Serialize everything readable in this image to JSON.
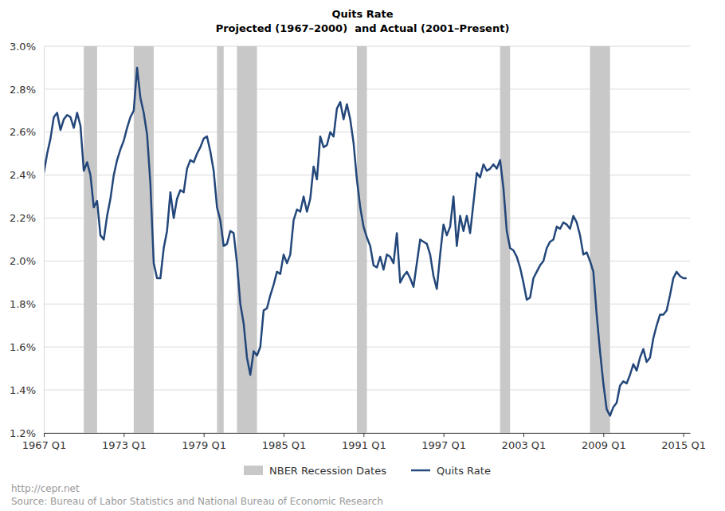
{
  "chart_data": {
    "type": "line",
    "title": "Quits Rate",
    "subtitle": "Projected (1967–2000)  and Actual (2001–Present)",
    "credit": "http://cepr.net",
    "source": "Source: Bureau of Labor Statistics and National Bureau of Economic Research",
    "x": [
      1967,
      1967.25,
      1967.5,
      1967.75,
      1968,
      1968.25,
      1968.5,
      1968.75,
      1969,
      1969.25,
      1969.5,
      1969.75,
      1970,
      1970.25,
      1970.5,
      1970.75,
      1971,
      1971.25,
      1971.5,
      1971.75,
      1972,
      1972.25,
      1972.5,
      1972.75,
      1973,
      1973.25,
      1973.5,
      1973.75,
      1974,
      1974.25,
      1974.5,
      1974.75,
      1975,
      1975.25,
      1975.5,
      1975.75,
      1976,
      1976.25,
      1976.5,
      1976.75,
      1977,
      1977.25,
      1977.5,
      1977.75,
      1978,
      1978.25,
      1978.5,
      1978.75,
      1979,
      1979.25,
      1979.5,
      1979.75,
      1980,
      1980.25,
      1980.5,
      1980.75,
      1981,
      1981.25,
      1981.5,
      1981.75,
      1982,
      1982.25,
      1982.5,
      1982.75,
      1983,
      1983.25,
      1983.5,
      1983.75,
      1984,
      1984.25,
      1984.5,
      1984.75,
      1985,
      1985.25,
      1985.5,
      1985.75,
      1986,
      1986.25,
      1986.5,
      1986.75,
      1987,
      1987.25,
      1987.5,
      1987.75,
      1988,
      1988.25,
      1988.5,
      1988.75,
      1989,
      1989.25,
      1989.5,
      1989.75,
      1990,
      1990.25,
      1990.5,
      1990.75,
      1991,
      1991.25,
      1991.5,
      1991.75,
      1992,
      1992.25,
      1992.5,
      1992.75,
      1993,
      1993.25,
      1993.5,
      1993.75,
      1994,
      1994.25,
      1994.5,
      1994.75,
      1995,
      1995.25,
      1995.5,
      1995.75,
      1996,
      1996.25,
      1996.5,
      1996.75,
      1997,
      1997.25,
      1997.5,
      1997.75,
      1998,
      1998.25,
      1998.5,
      1998.75,
      1999,
      1999.25,
      1999.5,
      1999.75,
      2000,
      2000.25,
      2000.5,
      2000.75,
      2001,
      2001.25,
      2001.5,
      2001.75,
      2002,
      2002.25,
      2002.5,
      2002.75,
      2003,
      2003.25,
      2003.5,
      2003.75,
      2004,
      2004.25,
      2004.5,
      2004.75,
      2005,
      2005.25,
      2005.5,
      2005.75,
      2006,
      2006.25,
      2006.5,
      2006.75,
      2007,
      2007.25,
      2007.5,
      2007.75,
      2008,
      2008.25,
      2008.5,
      2008.75,
      2009,
      2009.25,
      2009.5,
      2009.75,
      2010,
      2010.25,
      2010.5,
      2010.75,
      2011,
      2011.25,
      2011.5,
      2011.75,
      2012,
      2012.25,
      2012.5,
      2012.75,
      2013,
      2013.25,
      2013.5,
      2013.75,
      2014,
      2014.25,
      2014.5,
      2014.75,
      2015,
      2015.25
    ],
    "series": [
      {
        "name": "Quits Rate",
        "color": "#23477a",
        "values": [
          2.41,
          2.5,
          2.57,
          2.67,
          2.69,
          2.61,
          2.66,
          2.68,
          2.67,
          2.62,
          2.69,
          2.63,
          2.42,
          2.46,
          2.4,
          2.25,
          2.28,
          2.12,
          2.1,
          2.21,
          2.29,
          2.4,
          2.47,
          2.52,
          2.56,
          2.62,
          2.67,
          2.7,
          2.9,
          2.76,
          2.69,
          2.59,
          2.36,
          1.99,
          1.92,
          1.92,
          2.06,
          2.14,
          2.32,
          2.2,
          2.29,
          2.33,
          2.32,
          2.43,
          2.47,
          2.46,
          2.5,
          2.53,
          2.57,
          2.58,
          2.51,
          2.42,
          2.25,
          2.19,
          2.07,
          2.08,
          2.14,
          2.13,
          1.99,
          1.8,
          1.71,
          1.55,
          1.47,
          1.58,
          1.56,
          1.6,
          1.77,
          1.78,
          1.84,
          1.89,
          1.95,
          1.94,
          2.03,
          1.99,
          2.03,
          2.19,
          2.24,
          2.23,
          2.3,
          2.23,
          2.29,
          2.44,
          2.38,
          2.58,
          2.53,
          2.54,
          2.6,
          2.58,
          2.71,
          2.74,
          2.66,
          2.73,
          2.66,
          2.55,
          2.38,
          2.25,
          2.16,
          2.11,
          2.07,
          1.98,
          1.97,
          2.02,
          1.96,
          2.03,
          2.02,
          1.99,
          2.13,
          1.9,
          1.93,
          1.95,
          1.92,
          1.88,
          1.99,
          2.1,
          2.09,
          2.08,
          2.03,
          1.93,
          1.87,
          2.03,
          2.17,
          2.12,
          2.16,
          2.3,
          2.07,
          2.21,
          2.14,
          2.21,
          2.13,
          2.27,
          2.41,
          2.39,
          2.45,
          2.42,
          2.43,
          2.45,
          2.43,
          2.47,
          2.34,
          2.14,
          2.06,
          2.05,
          2.02,
          1.97,
          1.9,
          1.82,
          1.83,
          1.92,
          1.95,
          1.98,
          2.0,
          2.06,
          2.09,
          2.1,
          2.16,
          2.15,
          2.18,
          2.17,
          2.15,
          2.21,
          2.18,
          2.12,
          2.03,
          2.04,
          2.0,
          1.95,
          1.75,
          1.58,
          1.43,
          1.31,
          1.28,
          1.32,
          1.34,
          1.42,
          1.44,
          1.43,
          1.47,
          1.52,
          1.49,
          1.55,
          1.59,
          1.53,
          1.55,
          1.64,
          1.7,
          1.75,
          1.75,
          1.77,
          1.84,
          1.92,
          1.95,
          1.93,
          1.92,
          1.92
        ]
      }
    ],
    "bands": {
      "name": "NBER Recession Dates",
      "color": "#c8c8c8",
      "ranges": [
        [
          1970,
          1971
        ],
        [
          1973.75,
          1975.25
        ],
        [
          1980,
          1980.5
        ],
        [
          1981.5,
          1983
        ],
        [
          1990.5,
          1991.25
        ],
        [
          2001.25,
          2002
        ],
        [
          2008,
          2009.5
        ]
      ]
    },
    "xlim": [
      1967,
      2015.5
    ],
    "xticks": [
      {
        "value": 1967,
        "label": "1967 Q1"
      },
      {
        "value": 1973,
        "label": "1973 Q1"
      },
      {
        "value": 1979,
        "label": "1979 Q1"
      },
      {
        "value": 1985,
        "label": "1985 Q1"
      },
      {
        "value": 1991,
        "label": "1991 Q1"
      },
      {
        "value": 1997,
        "label": "1997 Q1"
      },
      {
        "value": 2003,
        "label": "2003 Q1"
      },
      {
        "value": 2009,
        "label": "2009 Q1"
      },
      {
        "value": 2015,
        "label": "2015 Q1"
      }
    ],
    "ylim": [
      1.2,
      3.0
    ],
    "yticks": [
      {
        "value": 1.2,
        "label": "1.2%"
      },
      {
        "value": 1.4,
        "label": "1.4%"
      },
      {
        "value": 1.6,
        "label": "1.6%"
      },
      {
        "value": 1.8,
        "label": "1.8%"
      },
      {
        "value": 2.0,
        "label": "2.0%"
      },
      {
        "value": 2.2,
        "label": "2.2%"
      },
      {
        "value": 2.4,
        "label": "2.4%"
      },
      {
        "value": 2.6,
        "label": "2.6%"
      },
      {
        "value": 2.8,
        "label": "2.8%"
      },
      {
        "value": 3.0,
        "label": "3.0%"
      }
    ],
    "grid": true,
    "legend": "bottom"
  }
}
